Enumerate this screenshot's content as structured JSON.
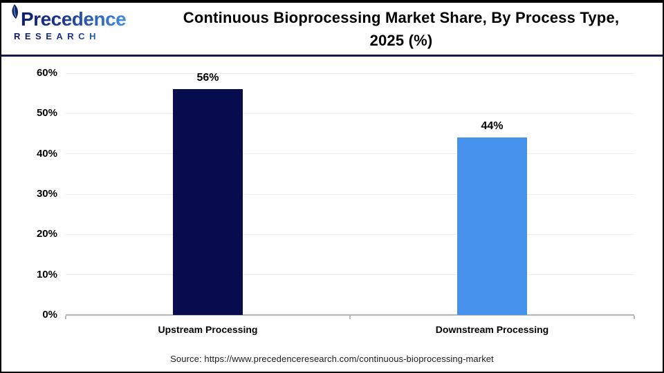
{
  "header": {
    "logo": {
      "brand": "Precedence",
      "subtext": "RESEARCH"
    },
    "title_line1": "Continuous Bioprocessing Market Share, By Process Type,",
    "title_line2": "2025 (%)"
  },
  "chart_data": {
    "type": "bar",
    "title": "Continuous Bioprocessing Market Share, By Process Type, 2025 (%)",
    "categories": [
      "Upstream Processing",
      "Downstream Processing"
    ],
    "values": [
      56,
      44
    ],
    "value_labels": [
      "56%",
      "44%"
    ],
    "bar_colors": [
      "#060c4e",
      "#4591ec"
    ],
    "ylim": [
      0,
      60
    ],
    "yticks": [
      0,
      10,
      20,
      30,
      40,
      50,
      60
    ],
    "ytick_labels": [
      "0%",
      "10%",
      "20%",
      "30%",
      "40%",
      "50%",
      "60%"
    ],
    "grid": true,
    "legend": false,
    "xlabel": "",
    "ylabel": ""
  },
  "footer": {
    "source": "Source: https://www.precedenceresearch.com/continuous-bioprocessing-market"
  },
  "colors": {
    "bar_upstream": "#060c4e",
    "bar_downstream": "#4591ec",
    "header_divider": "#161a4e",
    "gridline": "#f1eeee",
    "axis_line": "#b7b7b7",
    "logo_gradient_start": "#0c1660",
    "logo_gradient_end": "#3f8ce4",
    "title_text": "#000000",
    "source_text": "#1c1c1c"
  }
}
